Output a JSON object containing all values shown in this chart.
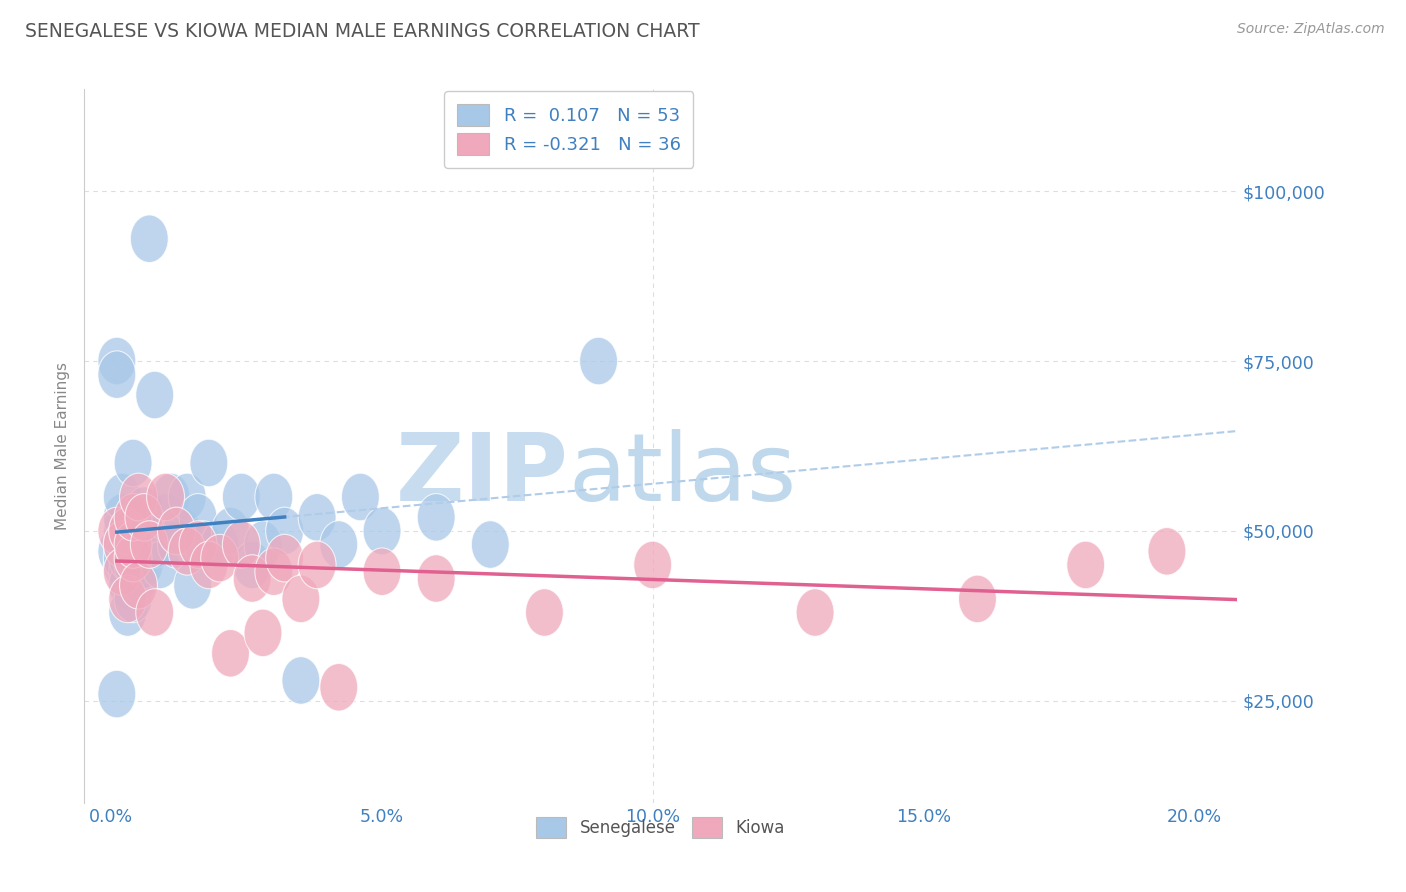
{
  "title": "SENEGALESE VS KIOWA MEDIAN MALE EARNINGS CORRELATION CHART",
  "source_text": "Source: ZipAtlas.com",
  "ylabel": "Median Male Earnings",
  "xlabel_ticks": [
    "0.0%",
    "5.0%",
    "10.0%",
    "15.0%",
    "20.0%"
  ],
  "xlabel_vals": [
    0.0,
    0.05,
    0.1,
    0.15,
    0.2
  ],
  "ytick_labels": [
    "$100,000",
    "$75,000",
    "$50,000",
    "$25,000"
  ],
  "ytick_vals": [
    100000,
    75000,
    50000,
    25000
  ],
  "xlim": [
    -0.005,
    0.208
  ],
  "ylim": [
    10000,
    115000
  ],
  "R_senegalese": 0.107,
  "N_senegalese": 53,
  "R_kiowa": -0.321,
  "N_kiowa": 36,
  "blue_color": "#A8C8E8",
  "pink_color": "#F0A8BC",
  "blue_line_color": "#4080C0",
  "pink_line_color": "#E06090",
  "blue_dashed_color": "#B0CCE8",
  "watermark_zip_color": "#C8DCF0",
  "watermark_atlas_color": "#C0D4E8",
  "title_color": "#555555",
  "axis_label_color": "#888888",
  "tick_color": "#4080C0",
  "grid_color": "#DDDDDD",
  "background_color": "#FFFFFF",
  "legend_box_color": "#CCCCCC",
  "senegalese_x": [
    0.001,
    0.001,
    0.001,
    0.001,
    0.002,
    0.002,
    0.002,
    0.002,
    0.002,
    0.002,
    0.003,
    0.003,
    0.003,
    0.003,
    0.003,
    0.003,
    0.004,
    0.004,
    0.004,
    0.004,
    0.005,
    0.005,
    0.005,
    0.006,
    0.006,
    0.007,
    0.008,
    0.008,
    0.009,
    0.01,
    0.011,
    0.012,
    0.013,
    0.014,
    0.015,
    0.016,
    0.017,
    0.018,
    0.02,
    0.022,
    0.024,
    0.026,
    0.028,
    0.03,
    0.032,
    0.035,
    0.038,
    0.042,
    0.046,
    0.05,
    0.06,
    0.07,
    0.09
  ],
  "senegalese_y": [
    47000,
    75000,
    73000,
    26000,
    50000,
    45000,
    48000,
    52000,
    55000,
    46000,
    50000,
    48000,
    44000,
    42000,
    46000,
    38000,
    60000,
    50000,
    45000,
    40000,
    52000,
    48000,
    43000,
    53000,
    45000,
    93000,
    70000,
    48000,
    45000,
    52000,
    55000,
    48000,
    50000,
    55000,
    42000,
    52000,
    48000,
    60000,
    48000,
    50000,
    55000,
    45000,
    48000,
    55000,
    50000,
    28000,
    52000,
    48000,
    55000,
    50000,
    52000,
    48000,
    75000
  ],
  "kiowa_x": [
    0.001,
    0.002,
    0.002,
    0.003,
    0.003,
    0.004,
    0.004,
    0.004,
    0.005,
    0.005,
    0.006,
    0.007,
    0.008,
    0.01,
    0.012,
    0.014,
    0.016,
    0.018,
    0.02,
    0.022,
    0.024,
    0.026,
    0.028,
    0.03,
    0.032,
    0.035,
    0.038,
    0.042,
    0.05,
    0.06,
    0.08,
    0.1,
    0.13,
    0.16,
    0.18,
    0.195
  ],
  "kiowa_y": [
    50000,
    48000,
    44000,
    50000,
    40000,
    46000,
    48000,
    52000,
    55000,
    42000,
    52000,
    48000,
    38000,
    55000,
    50000,
    47000,
    48000,
    45000,
    46000,
    32000,
    48000,
    43000,
    35000,
    44000,
    46000,
    40000,
    45000,
    27000,
    44000,
    43000,
    38000,
    45000,
    38000,
    40000,
    45000,
    47000
  ]
}
